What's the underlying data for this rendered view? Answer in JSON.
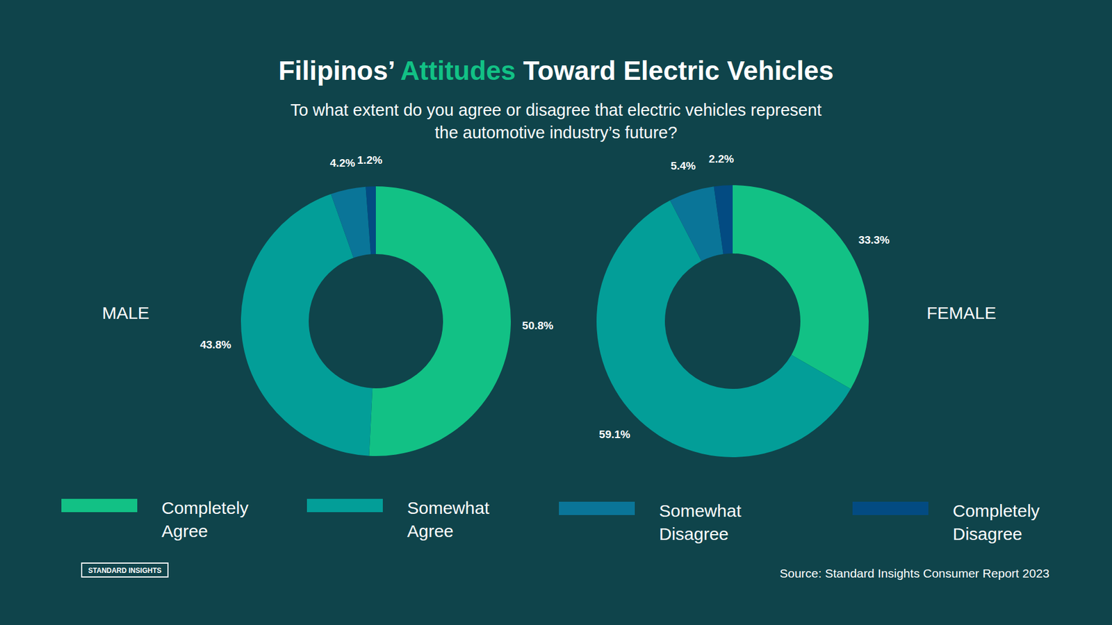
{
  "header": {
    "title": [
      "Filipinos’ ",
      "Attitudes",
      " Toward Electric Vehicles"
    ],
    "subtitle": [
      "To what extent do you agree or disagree that electric vehicles represent",
      "the automotive industry’s future?"
    ]
  },
  "chart_data": [
    {
      "type": "pie",
      "title": "MALE",
      "categories": [
        "Completely Agree",
        "Somewhat Agree",
        "Somewhat Disagree",
        "Completely Disagree"
      ],
      "values": [
        50.8,
        43.8,
        4.2,
        1.2
      ],
      "value_labels": [
        "50.8%",
        "43.8%",
        "4.2%",
        "1.2%"
      ],
      "colors": [
        "#12c185",
        "#039e98",
        "#0a7598",
        "#034b82"
      ],
      "data_labels": true,
      "legend": "bottom"
    },
    {
      "type": "pie",
      "title": "FEMALE",
      "categories": [
        "Completely Agree",
        "Somewhat Agree",
        "Somewhat Disagree",
        "Completely Disagree"
      ],
      "values": [
        33.3,
        59.1,
        5.4,
        2.2
      ],
      "value_labels": [
        "33.3%",
        "59.1%",
        "5.4%",
        "2.2%"
      ],
      "colors": [
        "#12c185",
        "#039e98",
        "#0a7598",
        "#034b82"
      ],
      "data_labels": true
    }
  ],
  "footer": {
    "logo": "STANDARD INSIGHTS",
    "source": "Source: Standard Insights Consumer Report 2023"
  }
}
